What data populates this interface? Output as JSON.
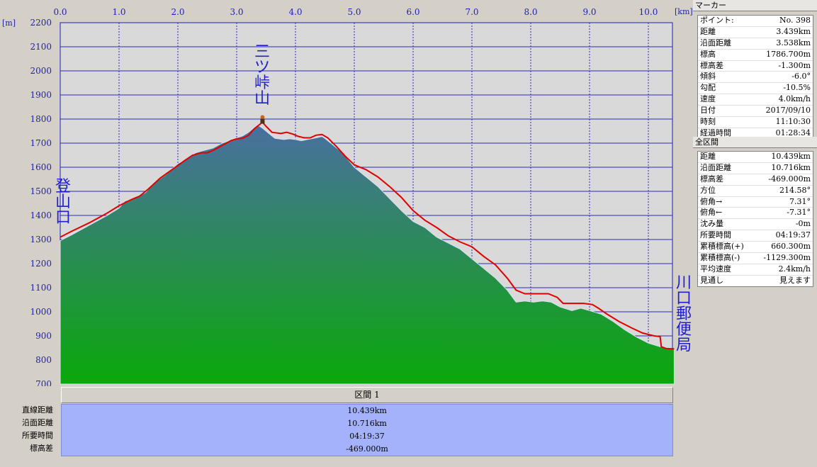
{
  "chart_data": {
    "type": "area",
    "x_unit_label": "[km]",
    "y_unit_label": "[m]",
    "xlim": [
      0,
      10.439
    ],
    "ylim": [
      700,
      2200
    ],
    "x_ticks": [
      "0.0",
      "1.0",
      "2.0",
      "3.0",
      "4.0",
      "5.0",
      "6.0",
      "7.0",
      "8.0",
      "9.0",
      "10.0"
    ],
    "y_ticks": [
      "2200",
      "2100",
      "2000",
      "1900",
      "1800",
      "1700",
      "1600",
      "1500",
      "1400",
      "1300",
      "1200",
      "1100",
      "1000",
      "900",
      "800",
      "700"
    ],
    "grid": true,
    "series": [
      {
        "color": "#e00000",
        "points": [
          [
            0,
            1310
          ],
          [
            0.2,
            1335
          ],
          [
            0.5,
            1370
          ],
          [
            0.8,
            1410
          ],
          [
            1.0,
            1440
          ],
          [
            1.2,
            1465
          ],
          [
            1.35,
            1480
          ],
          [
            1.5,
            1510
          ],
          [
            1.7,
            1555
          ],
          [
            1.9,
            1590
          ],
          [
            2.1,
            1625
          ],
          [
            2.25,
            1650
          ],
          [
            2.4,
            1660
          ],
          [
            2.5,
            1660
          ],
          [
            2.6,
            1670
          ],
          [
            2.75,
            1690
          ],
          [
            2.9,
            1710
          ],
          [
            3.0,
            1718
          ],
          [
            3.1,
            1720
          ],
          [
            3.2,
            1732
          ],
          [
            3.3,
            1760
          ],
          [
            3.439,
            1786.7
          ],
          [
            3.5,
            1770
          ],
          [
            3.6,
            1745
          ],
          [
            3.75,
            1740
          ],
          [
            3.85,
            1745
          ],
          [
            3.95,
            1738
          ],
          [
            4.05,
            1728
          ],
          [
            4.15,
            1722
          ],
          [
            4.25,
            1722
          ],
          [
            4.35,
            1733
          ],
          [
            4.45,
            1736
          ],
          [
            4.55,
            1722
          ],
          [
            4.7,
            1685
          ],
          [
            4.85,
            1645
          ],
          [
            5.0,
            1610
          ],
          [
            5.2,
            1590
          ],
          [
            5.4,
            1560
          ],
          [
            5.6,
            1520
          ],
          [
            5.8,
            1475
          ],
          [
            6.0,
            1420
          ],
          [
            6.2,
            1380
          ],
          [
            6.4,
            1350
          ],
          [
            6.6,
            1315
          ],
          [
            6.8,
            1290
          ],
          [
            7.0,
            1270
          ],
          [
            7.2,
            1230
          ],
          [
            7.4,
            1195
          ],
          [
            7.6,
            1140
          ],
          [
            7.75,
            1090
          ],
          [
            7.9,
            1075
          ],
          [
            8.1,
            1075
          ],
          [
            8.3,
            1075
          ],
          [
            8.45,
            1060
          ],
          [
            8.55,
            1035
          ],
          [
            8.7,
            1035
          ],
          [
            8.9,
            1035
          ],
          [
            9.05,
            1030
          ],
          [
            9.15,
            1015
          ],
          [
            9.3,
            990
          ],
          [
            9.5,
            960
          ],
          [
            9.7,
            935
          ],
          [
            9.9,
            912
          ],
          [
            10.1,
            900
          ],
          [
            10.2,
            897
          ],
          [
            10.22,
            855
          ],
          [
            10.3,
            848
          ],
          [
            10.439,
            846
          ]
        ]
      },
      {
        "fill_top": "#4a6fa0",
        "fill_bottom": "#0aa80a",
        "points": [
          [
            0,
            1295
          ],
          [
            0.2,
            1320
          ],
          [
            0.5,
            1360
          ],
          [
            0.8,
            1400
          ],
          [
            1.0,
            1430
          ],
          [
            1.1,
            1460
          ],
          [
            1.3,
            1475
          ],
          [
            1.45,
            1495
          ],
          [
            1.6,
            1535
          ],
          [
            1.8,
            1570
          ],
          [
            2.0,
            1615
          ],
          [
            2.2,
            1640
          ],
          [
            2.3,
            1660
          ],
          [
            2.45,
            1670
          ],
          [
            2.6,
            1680
          ],
          [
            2.75,
            1700
          ],
          [
            2.9,
            1712
          ],
          [
            3.0,
            1722
          ],
          [
            3.1,
            1730
          ],
          [
            3.2,
            1745
          ],
          [
            3.3,
            1765
          ],
          [
            3.38,
            1772
          ],
          [
            3.45,
            1760
          ],
          [
            3.55,
            1740
          ],
          [
            3.65,
            1720
          ],
          [
            3.8,
            1715
          ],
          [
            3.9,
            1718
          ],
          [
            4.0,
            1715
          ],
          [
            4.1,
            1710
          ],
          [
            4.2,
            1715
          ],
          [
            4.35,
            1722
          ],
          [
            4.45,
            1728
          ],
          [
            4.5,
            1720
          ],
          [
            4.6,
            1700
          ],
          [
            4.8,
            1660
          ],
          [
            5.0,
            1600
          ],
          [
            5.2,
            1560
          ],
          [
            5.4,
            1520
          ],
          [
            5.6,
            1470
          ],
          [
            5.8,
            1420
          ],
          [
            6.0,
            1375
          ],
          [
            6.2,
            1350
          ],
          [
            6.4,
            1310
          ],
          [
            6.6,
            1285
          ],
          [
            6.8,
            1260
          ],
          [
            7.0,
            1220
          ],
          [
            7.2,
            1180
          ],
          [
            7.4,
            1140
          ],
          [
            7.6,
            1090
          ],
          [
            7.75,
            1040
          ],
          [
            7.9,
            1045
          ],
          [
            8.05,
            1040
          ],
          [
            8.2,
            1045
          ],
          [
            8.35,
            1040
          ],
          [
            8.5,
            1020
          ],
          [
            8.7,
            1005
          ],
          [
            8.85,
            1015
          ],
          [
            9.0,
            1005
          ],
          [
            9.2,
            990
          ],
          [
            9.4,
            960
          ],
          [
            9.6,
            925
          ],
          [
            9.8,
            895
          ],
          [
            10.0,
            870
          ],
          [
            10.2,
            855
          ],
          [
            10.439,
            845
          ]
        ]
      }
    ],
    "annotations": [
      {
        "text": "登山口",
        "x": 0,
        "y": 1450
      },
      {
        "text": "三ツ峠山",
        "x": 3.439,
        "y": 1786.7
      },
      {
        "text": "川口郵便局",
        "x": 10.439,
        "y": 950
      }
    ]
  },
  "marker_panel": {
    "title": "マーカー",
    "rows": [
      {
        "k": "ポイント:",
        "v": "No. 398"
      },
      {
        "k": "距離",
        "v": "3.439km"
      },
      {
        "k": "沿面距離",
        "v": "3.538km"
      },
      {
        "k": "標高",
        "v": "1786.700m"
      },
      {
        "k": "標高差",
        "v": "-1.300m"
      },
      {
        "k": "傾斜",
        "v": "-6.0°"
      },
      {
        "k": "勾配",
        "v": "-10.5%"
      },
      {
        "k": "速度",
        "v": "4.0km/h"
      },
      {
        "k": "日付",
        "v": "2017/09/10"
      },
      {
        "k": "時刻",
        "v": "11:10:30"
      },
      {
        "k": "経過時間",
        "v": "01:28:34"
      }
    ]
  },
  "total_panel": {
    "title": "全区間",
    "rows": [
      {
        "k": "距離",
        "v": "10.439km"
      },
      {
        "k": "沿面距離",
        "v": "10.716km"
      },
      {
        "k": "標高差",
        "v": "-469.000m"
      },
      {
        "k": "方位",
        "v": "214.58°"
      },
      {
        "k": "俯角→",
        "v": "7.31°"
      },
      {
        "k": "俯角←",
        "v": "-7.31°"
      },
      {
        "k": "沈み量",
        "v": "-0m"
      },
      {
        "k": "所要時間",
        "v": "04:19:37"
      },
      {
        "k": "累積標高(+)",
        "v": "660.300m"
      },
      {
        "k": "累積標高(-)",
        "v": "-1129.300m"
      },
      {
        "k": "平均速度",
        "v": "2.4km/h"
      },
      {
        "k": "見通し",
        "v": "見えます"
      }
    ]
  },
  "section": {
    "header": "区間 1",
    "labels": [
      "直線距離",
      "沿面距離",
      "所要時間",
      "標高差"
    ],
    "values": [
      "10.439km",
      "10.716km",
      "04:19:37",
      "-469.000m"
    ]
  }
}
